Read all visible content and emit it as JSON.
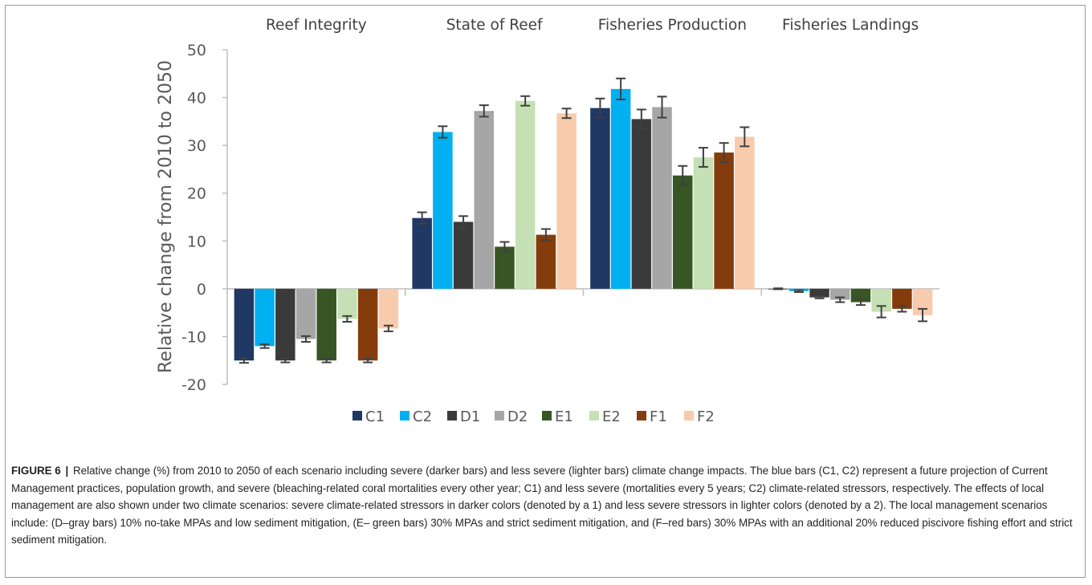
{
  "chart_data": {
    "type": "bar",
    "ylabel": "Relative change from 2010 to 2050",
    "ylim": [
      -20,
      50
    ],
    "yticks": [
      -20,
      -10,
      0,
      10,
      20,
      30,
      40,
      50
    ],
    "categories": [
      "Reef Integrity",
      "State of Reef",
      "Fisheries Production",
      "Fisheries Landings"
    ],
    "grid": false,
    "legend_position": "bottom",
    "error_bars": true,
    "series": [
      {
        "name": "C1",
        "color": "#1f3864",
        "values": [
          -15.0,
          14.8,
          37.8,
          0.0
        ],
        "errors": [
          0.5,
          1.2,
          2.0,
          0.1
        ]
      },
      {
        "name": "C2",
        "color": "#00b0f0",
        "values": [
          -12.0,
          32.8,
          41.8,
          -0.5
        ],
        "errors": [
          0.4,
          1.2,
          2.2,
          0.2
        ]
      },
      {
        "name": "D1",
        "color": "#3a3a3a",
        "values": [
          -15.0,
          14.0,
          35.5,
          -1.8
        ],
        "errors": [
          0.4,
          1.2,
          2.0,
          0.2
        ]
      },
      {
        "name": "D2",
        "color": "#a6a6a6",
        "values": [
          -10.5,
          37.2,
          38.0,
          -2.3
        ],
        "errors": [
          0.6,
          1.2,
          2.2,
          0.5
        ]
      },
      {
        "name": "E1",
        "color": "#375623",
        "values": [
          -15.0,
          8.8,
          23.7,
          -2.8
        ],
        "errors": [
          0.4,
          1.0,
          2.0,
          0.6
        ]
      },
      {
        "name": "E2",
        "color": "#c5e0b4",
        "values": [
          -6.3,
          39.3,
          27.5,
          -4.8
        ],
        "errors": [
          0.6,
          1.0,
          2.0,
          1.2
        ]
      },
      {
        "name": "F1",
        "color": "#843c0c",
        "values": [
          -15.0,
          11.3,
          28.5,
          -4.2
        ],
        "errors": [
          0.4,
          1.2,
          2.0,
          0.6
        ]
      },
      {
        "name": "F2",
        "color": "#f8cbad",
        "values": [
          -8.3,
          36.7,
          31.8,
          -5.5
        ],
        "errors": [
          0.6,
          1.0,
          2.0,
          1.3
        ]
      }
    ]
  },
  "caption": {
    "label": "FIGURE 6",
    "separator": "|",
    "text": "Relative change (%) from 2010 to 2050 of each scenario including severe (darker bars) and less severe (lighter bars) climate change impacts. The blue bars (C1, C2) represent a future projection of Current Management practices, population growth, and severe (bleaching-related coral mortalities every other year; C1) and less severe (mortalities every 5 years; C2) climate-related stressors, respectively. The effects of local management are also shown under two climate scenarios: severe climate-related stressors in darker colors (denoted by a 1) and less severe stressors in lighter colors (denoted by a 2). The local management scenarios include: (D–gray bars) 10% no-take MPAs and low sediment mitigation, (E– green bars) 30% MPAs and strict sediment mitigation, and (F–red bars) 30% MPAs with an additional 20% reduced piscivore fishing effort and strict sediment mitigation."
  }
}
